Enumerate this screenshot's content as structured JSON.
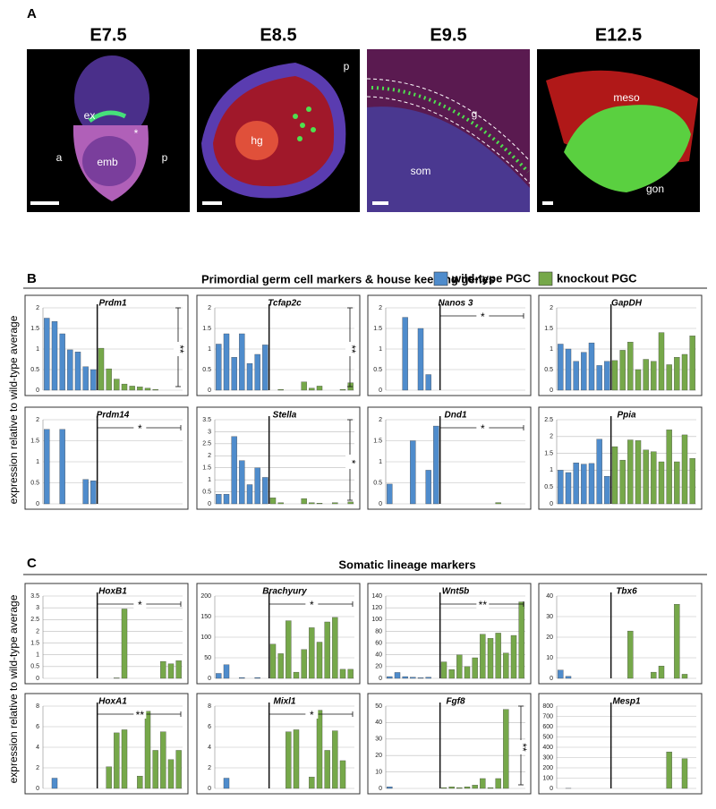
{
  "panel_A": {
    "label": "A",
    "stages": [
      {
        "title": "E7.5",
        "annotations": [
          "ex",
          "*",
          "emb",
          "a",
          "p"
        ]
      },
      {
        "title": "E8.5",
        "annotations": [
          "hg",
          "p"
        ]
      },
      {
        "title": "E9.5",
        "annotations": [
          "g",
          "som"
        ]
      },
      {
        "title": "E12.5",
        "annotations": [
          "meso",
          "gon"
        ]
      }
    ]
  },
  "panel_B": {
    "label": "B",
    "title": "Primordial germ cell markers & house keeping genes"
  },
  "panel_C": {
    "label": "C",
    "title": "Somatic lineage markers"
  },
  "y_axis_label": "expression relative to wild-type average",
  "legend": [
    {
      "name": "wild-type PGC",
      "color": "#4f8ccc"
    },
    {
      "name": "knockout PGC",
      "color": "#76a84a"
    }
  ],
  "chart_data": [
    {
      "type": "bar",
      "title": "Prdm1",
      "ylim": [
        0,
        2
      ],
      "yticks": [
        0,
        0.5,
        1,
        1.5,
        2
      ],
      "grid": true,
      "wild_type": [
        1.75,
        1.67,
        1.37,
        0.98,
        0.93,
        0.57,
        0.5
      ],
      "knockout": [
        1.02,
        0.52,
        0.27,
        0.15,
        0.1,
        0.08,
        0.05,
        0.02,
        0,
        0,
        0
      ],
      "significance": {
        "label": "**",
        "orientation": "vertical"
      }
    },
    {
      "type": "bar",
      "title": "Tcfap2c",
      "ylim": [
        0,
        2
      ],
      "yticks": [
        0,
        0.5,
        1,
        1.5,
        2
      ],
      "grid": true,
      "wild_type": [
        1.12,
        1.37,
        0.8,
        1.37,
        0.65,
        0.87,
        1.1
      ],
      "knockout": [
        0,
        0.02,
        0,
        0,
        0.2,
        0.05,
        0.1,
        0,
        0,
        0.02,
        0.18
      ],
      "significance": {
        "label": "**",
        "orientation": "vertical"
      }
    },
    {
      "type": "bar",
      "title": "Nanos 3",
      "ylim": [
        0,
        2
      ],
      "yticks": [
        0,
        0.5,
        1,
        1.5,
        2
      ],
      "grid": true,
      "wild_type": [
        0,
        0,
        1.77,
        0,
        1.5,
        0.38,
        0
      ],
      "knockout": [
        0,
        0,
        0,
        0,
        0,
        0,
        0,
        0,
        0,
        0,
        0
      ],
      "significance": {
        "label": "*",
        "orientation": "horizontal"
      }
    },
    {
      "type": "bar",
      "title": "GapDH",
      "ylim": [
        0,
        2
      ],
      "yticks": [
        0,
        0.5,
        1,
        1.5,
        2
      ],
      "grid": true,
      "wild_type": [
        1.12,
        1.0,
        0.7,
        0.92,
        1.15,
        0.6,
        0.7
      ],
      "knockout": [
        0.72,
        0.97,
        1.17,
        0.5,
        0.75,
        0.7,
        1.4,
        0.62,
        0.8,
        0.87,
        1.32
      ]
    },
    {
      "type": "bar",
      "title": "Prdm14",
      "ylim": [
        0,
        2
      ],
      "yticks": [
        0,
        0.5,
        1,
        1.5,
        2
      ],
      "grid": true,
      "wild_type": [
        1.77,
        0,
        1.77,
        0,
        0,
        0.58,
        0.55
      ],
      "knockout": [
        0,
        0,
        0,
        0,
        0,
        0,
        0,
        0,
        0,
        0,
        0
      ],
      "significance": {
        "label": "*",
        "orientation": "horizontal"
      }
    },
    {
      "type": "bar",
      "title": "Stella",
      "ylim": [
        0,
        3.5
      ],
      "yticks": [
        0,
        0.5,
        1,
        1.5,
        2,
        2.5,
        3,
        3.5
      ],
      "grid": true,
      "wild_type": [
        0.4,
        0.4,
        2.8,
        1.8,
        0.8,
        1.5,
        1.1
      ],
      "knockout": [
        0.25,
        0.05,
        0,
        0,
        0.22,
        0.05,
        0.03,
        0,
        0.05,
        0,
        0.08
      ],
      "significance": {
        "label": "*",
        "orientation": "vertical"
      }
    },
    {
      "type": "bar",
      "title": "Dnd1",
      "ylim": [
        0,
        2
      ],
      "yticks": [
        0,
        0.5,
        1,
        1.5,
        2
      ],
      "grid": true,
      "wild_type": [
        0.47,
        0,
        0,
        1.5,
        0,
        0.8,
        1.85
      ],
      "knockout": [
        0,
        0,
        0,
        0,
        0,
        0,
        0,
        0.03,
        0,
        0,
        0
      ],
      "significance": {
        "label": "*",
        "orientation": "horizontal"
      }
    },
    {
      "type": "bar",
      "title": "Ppia",
      "ylim": [
        0,
        2.5
      ],
      "yticks": [
        0,
        0.5,
        1,
        1.5,
        2,
        2.5
      ],
      "grid": true,
      "wild_type": [
        1.0,
        0.93,
        1.22,
        1.18,
        1.2,
        1.92,
        0.82
      ],
      "knockout": [
        1.7,
        1.3,
        1.9,
        1.88,
        1.6,
        1.55,
        1.25,
        2.2,
        1.25,
        2.05,
        1.35
      ]
    },
    {
      "type": "bar",
      "title": "HoxB1",
      "ylim": [
        0,
        3.5
      ],
      "yticks": [
        0,
        0.5,
        1,
        1.5,
        2,
        2.5,
        3,
        3.5
      ],
      "grid": true,
      "wild_type": [
        0,
        0,
        0,
        0,
        0,
        0,
        0
      ],
      "knockout": [
        0,
        0,
        0.02,
        2.95,
        0,
        0,
        0,
        0,
        0.72,
        0.62,
        0.75
      ],
      "significance": {
        "label": "*",
        "orientation": "horizontal"
      }
    },
    {
      "type": "bar",
      "title": "Brachyury",
      "ylim": [
        0,
        200
      ],
      "yticks": [
        0,
        50,
        100,
        150,
        200
      ],
      "grid": true,
      "wild_type": [
        12,
        33,
        0,
        2,
        0,
        2,
        0
      ],
      "knockout": [
        83,
        60,
        140,
        15,
        70,
        123,
        88,
        137,
        148,
        22,
        22
      ],
      "significance": {
        "label": "*",
        "orientation": "horizontal"
      }
    },
    {
      "type": "bar",
      "title": "Wnt5b",
      "ylim": [
        0,
        140
      ],
      "yticks": [
        0,
        20,
        40,
        60,
        80,
        100,
        120,
        140
      ],
      "grid": true,
      "wild_type": [
        3,
        10,
        3,
        2,
        1,
        2,
        0
      ],
      "knockout": [
        28,
        15,
        40,
        20,
        35,
        75,
        68,
        77,
        43,
        73,
        130
      ],
      "significance": {
        "label": "**",
        "orientation": "horizontal"
      }
    },
    {
      "type": "bar",
      "title": "Tbx6",
      "ylim": [
        0,
        40
      ],
      "yticks": [
        0,
        10,
        20,
        30,
        40
      ],
      "grid": true,
      "wild_type": [
        4,
        1,
        0,
        0,
        0,
        0,
        0
      ],
      "knockout": [
        0,
        0,
        23,
        0,
        0,
        3,
        6,
        0,
        36,
        2,
        0
      ]
    },
    {
      "type": "bar",
      "title": "HoxA1",
      "ylim": [
        0,
        8
      ],
      "yticks": [
        0,
        2,
        4,
        6,
        8
      ],
      "grid": true,
      "wild_type": [
        0,
        1,
        0,
        0,
        0,
        0,
        0
      ],
      "knockout": [
        0,
        2.1,
        5.4,
        5.7,
        0,
        1.2,
        7.5,
        3.7,
        5.5,
        2.8,
        3.7
      ],
      "significance": {
        "label": "**",
        "orientation": "horizontal"
      }
    },
    {
      "type": "bar",
      "title": "Mixl1",
      "ylim": [
        0,
        8
      ],
      "yticks": [
        0,
        2,
        4,
        6,
        8
      ],
      "grid": true,
      "wild_type": [
        0,
        1,
        0,
        0,
        0,
        0,
        0
      ],
      "knockout": [
        0,
        0,
        5.5,
        5.7,
        0,
        1.1,
        7.6,
        3.7,
        5.6,
        2.7,
        0
      ],
      "significance": {
        "label": "*",
        "orientation": "horizontal"
      }
    },
    {
      "type": "bar",
      "title": "Fgf8",
      "ylim": [
        0,
        50
      ],
      "yticks": [
        0,
        10,
        20,
        30,
        40,
        50
      ],
      "grid": true,
      "wild_type": [
        1,
        0,
        0,
        0,
        0,
        0,
        0
      ],
      "knockout": [
        0.5,
        1,
        0.5,
        1,
        2,
        6,
        0.5,
        6,
        48,
        0,
        0
      ],
      "significance": {
        "label": "**",
        "orientation": "vertical"
      }
    },
    {
      "type": "bar",
      "title": "Mesp1",
      "ylim": [
        0,
        800
      ],
      "yticks": [
        0,
        100,
        200,
        300,
        400,
        500,
        600,
        700,
        800
      ],
      "grid": true,
      "wild_type": [
        0,
        1,
        0,
        0,
        0,
        0,
        0
      ],
      "knockout": [
        0,
        0,
        0,
        0,
        0,
        0,
        0,
        355,
        0,
        290,
        0
      ]
    }
  ]
}
